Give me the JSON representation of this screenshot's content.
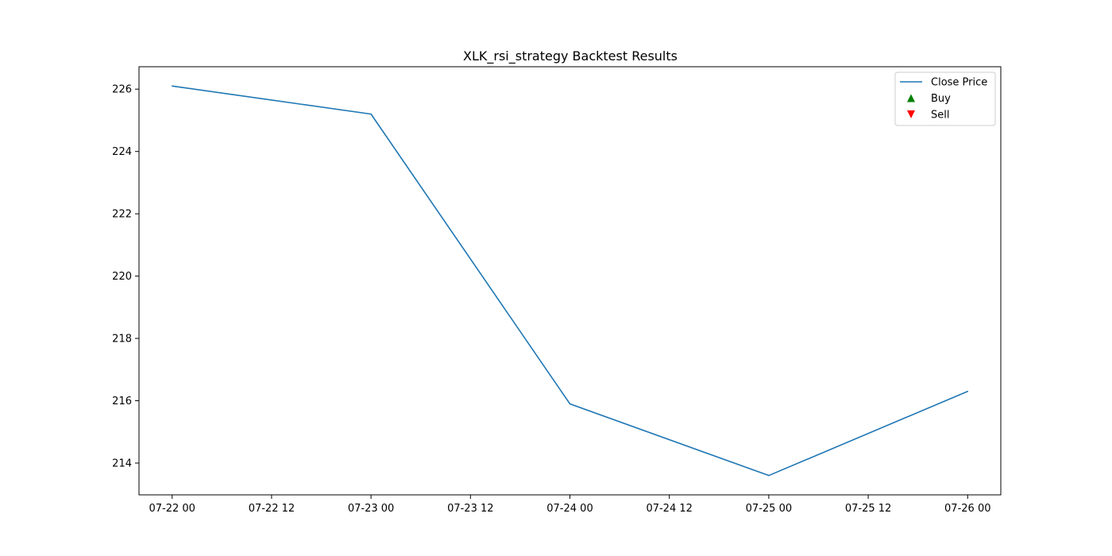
{
  "chart_data": {
    "type": "line",
    "title": "XLK_rsi_strategy Backtest Results",
    "xlabel": "",
    "ylabel": "",
    "x_ticks": [
      "07-22 00",
      "07-22 12",
      "07-23 00",
      "07-23 12",
      "07-24 00",
      "07-24 12",
      "07-25 00",
      "07-25 12",
      "07-26 00"
    ],
    "y_ticks": [
      214,
      216,
      218,
      220,
      222,
      224,
      226
    ],
    "xlim": [
      "07-21 20",
      "07-26 04"
    ],
    "ylim": [
      212.98,
      226.72
    ],
    "grid": false,
    "legend_position": "top-right",
    "series": [
      {
        "name": "Close Price",
        "color": "#1f77b4",
        "x": [
          "07-22 00",
          "07-23 00",
          "07-24 00",
          "07-25 00",
          "07-26 00"
        ],
        "values": [
          226.1,
          225.2,
          215.9,
          213.6,
          216.3
        ]
      }
    ],
    "legend": [
      {
        "label": "Close Price",
        "marker": "line",
        "color": "#1f77b4"
      },
      {
        "label": "Buy",
        "marker": "triangle-up",
        "color": "#008000"
      },
      {
        "label": "Sell",
        "marker": "triangle-down",
        "color": "#ff0000"
      }
    ],
    "buy_signals": [],
    "sell_signals": []
  }
}
